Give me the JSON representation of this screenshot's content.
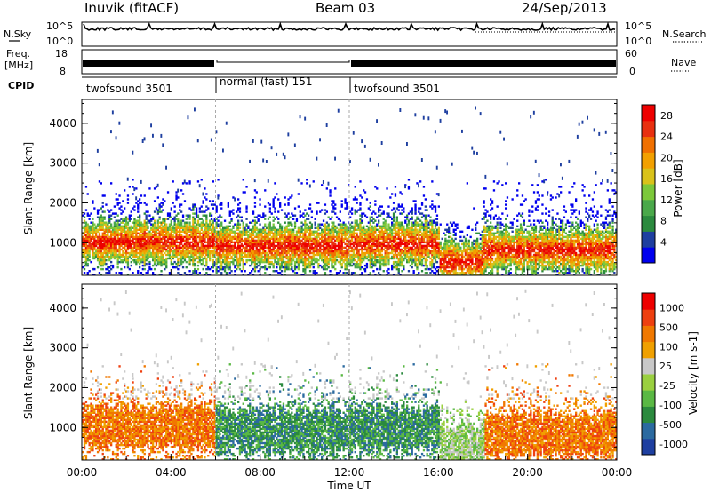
{
  "header": {
    "station": "Inuvik (fitACF)",
    "beam": "Beam 03",
    "date": "24/Sep/2013"
  },
  "colors": {
    "power_scale": [
      "#0000ee",
      "#1e3fa0",
      "#2b8a3e",
      "#4aa84a",
      "#7cc83a",
      "#d9c21a",
      "#f2a000",
      "#f07000",
      "#e83010",
      "#ee0000"
    ],
    "velocity_scale": [
      "#1e3fa0",
      "#2b6aa0",
      "#2b8a3e",
      "#5ab844",
      "#9ad040",
      "#c8c8c8",
      "#f0a000",
      "#f07800",
      "#ee4010",
      "#ee0000"
    ]
  },
  "chart_data": [
    {
      "type": "line",
      "panel": "noise",
      "left_labels": [
        "N.Sky"
      ],
      "right_labels": [
        "N.Search"
      ],
      "left_ticks": [
        "10^5",
        "10^0"
      ],
      "right_ticks": [
        "10^5",
        "10^0"
      ],
      "ylim": [
        1,
        100000
      ]
    },
    {
      "type": "line",
      "panel": "frequency",
      "left_labels": [
        "Freq.",
        "[MHz]"
      ],
      "right_labels": [
        "Nave"
      ],
      "left_ticks": [
        "18",
        "8"
      ],
      "right_ticks": [
        "60",
        "0"
      ],
      "ylim": [
        8,
        18
      ]
    },
    {
      "type": "table",
      "panel": "cpid",
      "label": "CPID",
      "segments": [
        {
          "start": "00:00",
          "end": "06:00",
          "text": "twofsound 3501"
        },
        {
          "start": "06:00",
          "end": "12:00",
          "text": "normal (fast) 151"
        },
        {
          "start": "12:00",
          "end": "24:00",
          "text": "twofsound 3501"
        }
      ]
    },
    {
      "type": "heatmap",
      "panel": "power",
      "ylabel": "Slant Range [km]",
      "yticks": [
        1000,
        2000,
        3000,
        4000
      ],
      "ylim": [
        180,
        4600
      ],
      "xticks": [
        "00:00",
        "04:00",
        "08:00",
        "12:00",
        "16:00",
        "20:00",
        "00:00"
      ],
      "colorbar": {
        "label": "Power [dB]",
        "ticks": [
          4,
          8,
          12,
          16,
          20,
          24,
          28
        ],
        "range": [
          0,
          30
        ]
      }
    },
    {
      "type": "heatmap",
      "panel": "velocity",
      "ylabel": "Slant Range [km]",
      "yticks": [
        1000,
        2000,
        3000,
        4000
      ],
      "ylim": [
        180,
        4600
      ],
      "xticks": [
        "00:00",
        "04:00",
        "08:00",
        "12:00",
        "16:00",
        "20:00",
        "00:00"
      ],
      "xlabel": "Time UT",
      "colorbar": {
        "label": "Velocity [m s-1]",
        "ticks": [
          "1000",
          "500",
          "100",
          "25",
          "-25",
          "-100",
          "-500",
          "-1000"
        ]
      }
    }
  ]
}
